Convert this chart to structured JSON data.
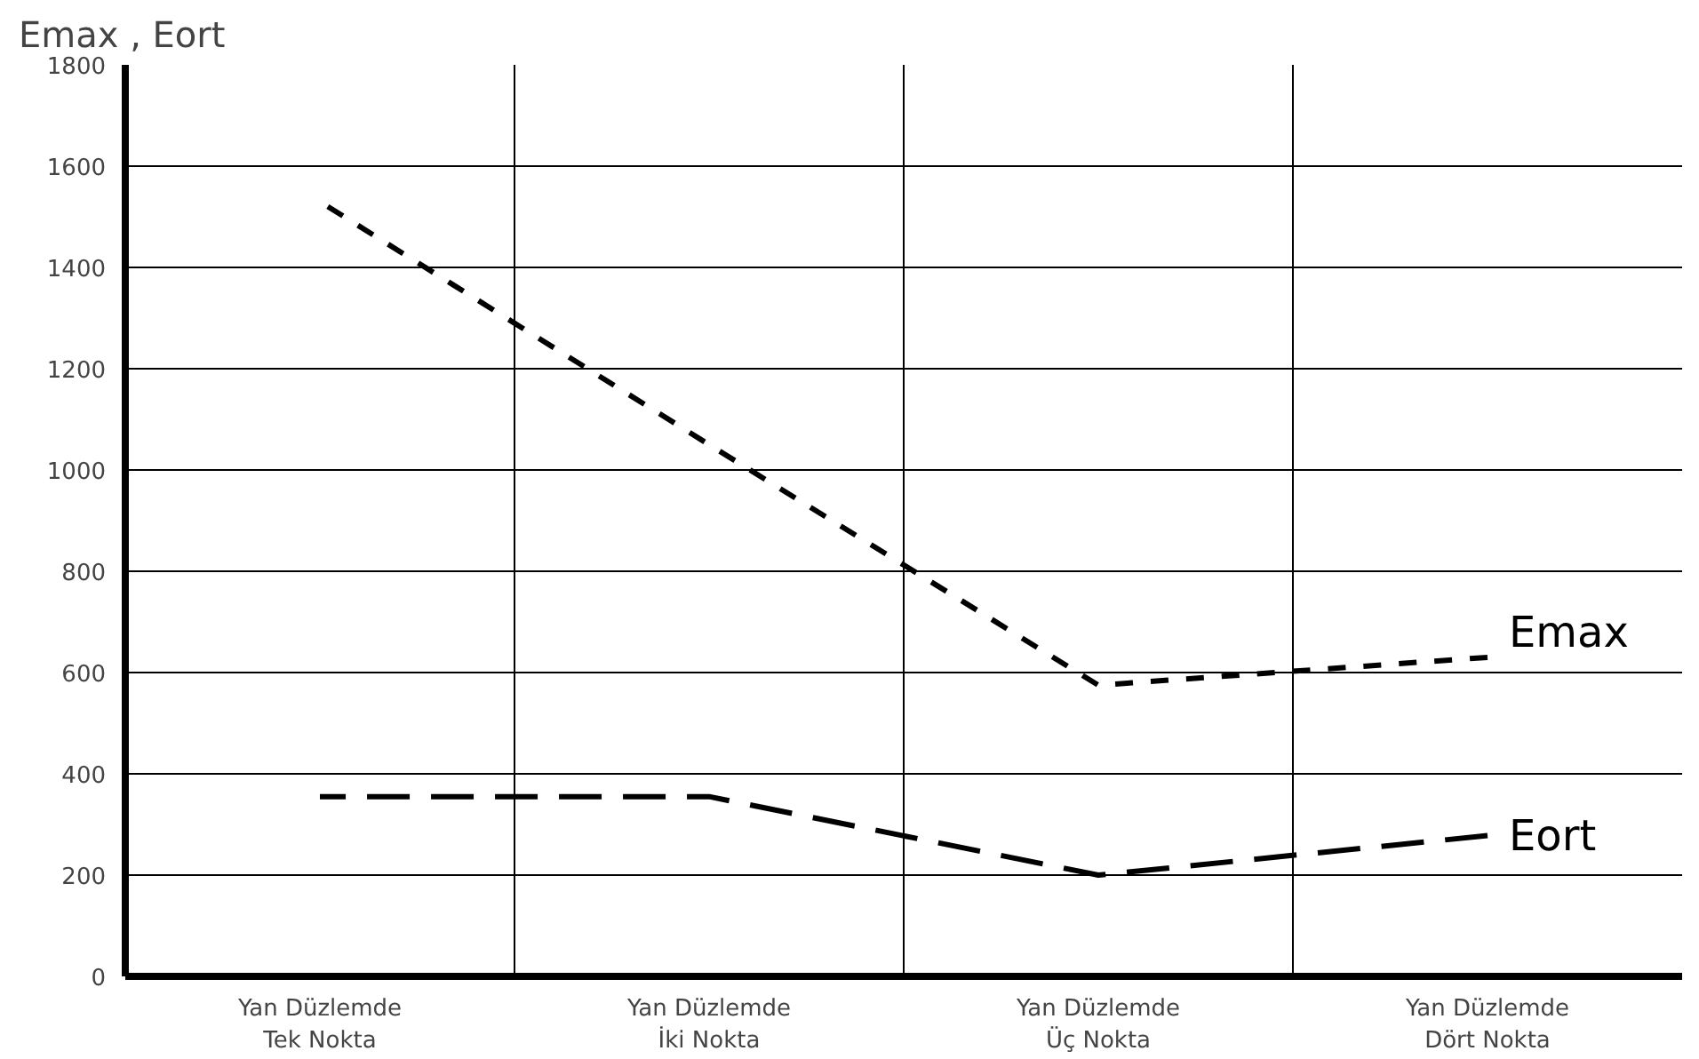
{
  "chart_data": {
    "type": "line",
    "ylabel": "Emax , Eort",
    "categories": [
      "Yan Düzlemde\nTek Nokta",
      "Yan Düzlemde\nİki Nokta",
      "Yan Düzlemde\nÜç Nokta",
      "Yan Düzlemde\nDört Nokta"
    ],
    "series": [
      {
        "name": "Emax",
        "color": "#000000",
        "line_style": "dashed",
        "values": [
          1530,
          1050,
          575,
          630
        ]
      },
      {
        "name": "Eort",
        "color": "#000000",
        "line_style": "dashed",
        "values": [
          355,
          355,
          200,
          278
        ]
      }
    ],
    "ylim": [
      0,
      1800
    ],
    "yticks": [
      0,
      200,
      400,
      600,
      800,
      1000,
      1200,
      1400,
      1600,
      1800
    ],
    "grid": true,
    "marker": "none"
  }
}
